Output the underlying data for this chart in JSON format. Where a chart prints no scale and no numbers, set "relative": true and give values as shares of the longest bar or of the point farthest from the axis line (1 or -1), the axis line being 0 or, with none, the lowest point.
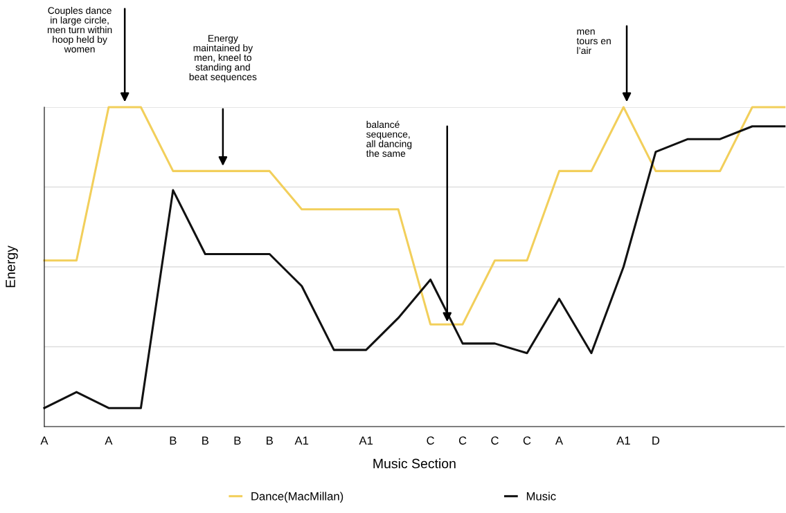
{
  "chart_data": {
    "type": "line",
    "xlabel": "Music Section",
    "ylabel": "Energy",
    "relative": true,
    "categories": [
      "A",
      null,
      "A",
      null,
      "B",
      "B",
      "B",
      "B",
      "A1",
      null,
      "A1",
      null,
      "C",
      "C",
      "C",
      "C",
      "A",
      null,
      "A1",
      "D",
      null,
      null,
      null,
      null
    ],
    "series": [
      {
        "name": "Dance(MacMillan)",
        "color": "#f2cf5b",
        "values": [
          0.52,
          0.52,
          1,
          1,
          0.8,
          0.8,
          0.8,
          0.8,
          0.68,
          0.68,
          0.68,
          0.68,
          0.32,
          0.32,
          0.52,
          0.52,
          0.8,
          0.8,
          1,
          0.8,
          0.8,
          0.8,
          1,
          1
        ]
      },
      {
        "name": "Music",
        "color": "#111111",
        "values": [
          0.058,
          0.108,
          0.058,
          0.058,
          0.74,
          0.54,
          0.54,
          0.54,
          0.44,
          0.24,
          0.24,
          0.34,
          0.46,
          0.26,
          0.26,
          0.23,
          0.4,
          0.23,
          0.5,
          0.86,
          0.9,
          0.9,
          0.94,
          0.94
        ]
      }
    ],
    "annotations": [
      "Couples dance\nin large circle,\nmen turn within\nhoop held by\nwomen",
      "Energy\nmaintained by\nmen, kneel to\nstanding and\nbeat sequences",
      "balancé\nsequence,\nall dancing\nthe same",
      "men\ntours en\nl’air"
    ],
    "grid": "y",
    "legend": "bottom",
    "marker": "none",
    "line_style": "solid"
  }
}
